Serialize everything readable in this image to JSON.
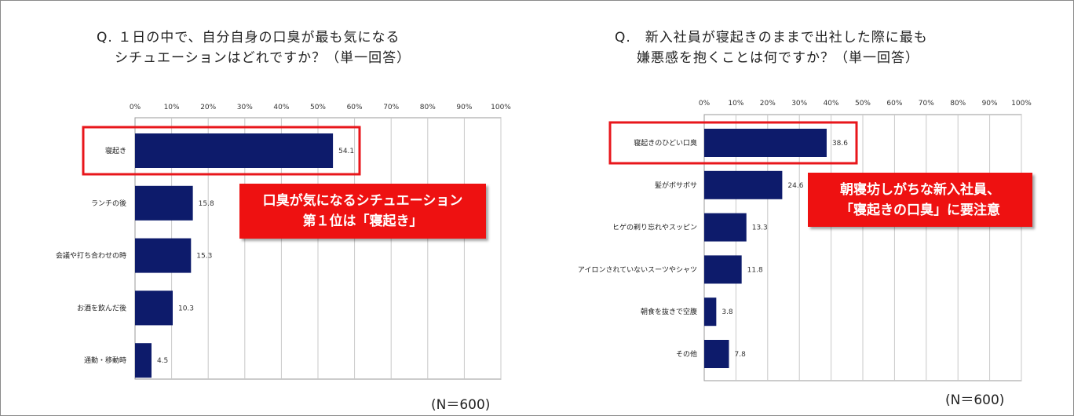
{
  "colors": {
    "bar": "#0d1b6b",
    "highlight": "#e8161b",
    "callout_bg": "#ee1111",
    "grid": "#c8c8c8"
  },
  "left": {
    "title_line1": "Q. １日の中で、自分自身の口臭が最も気になる",
    "title_line2": "シチュエーションはどれですか？（単一回答）",
    "callout_line1": "口臭が気になるシチュエーション",
    "callout_line2": "第１位は「寝起き」",
    "n_label": "(N＝600)"
  },
  "right": {
    "title_line1": "Q.　新入社員が寝起きのままで出社した際に最も",
    "title_line2": "嫌悪感を抱くことは何ですか？（単一回答）",
    "callout_line1": "朝寝坊しがちな新入社員、",
    "callout_line2": "「寝起きの口臭」に要注意",
    "n_label": "(N＝600)"
  },
  "chart_data": [
    {
      "type": "bar",
      "orientation": "horizontal",
      "title": "Q. １日の中で、自分自身の口臭が最も気になるシチュエーションはどれですか？（単一回答）",
      "categories": [
        "寝起き",
        "ランチの後",
        "会議や打ち合わせの時",
        "お酒を飲んだ後",
        "通勤・移動時"
      ],
      "values": [
        54.1,
        15.8,
        15.3,
        10.3,
        4.5
      ],
      "value_labels": [
        "54.1",
        "15.8",
        "15.3",
        "10.3",
        "4.5"
      ],
      "x_ticks": [
        "0%",
        "10%",
        "20%",
        "30%",
        "40%",
        "50%",
        "60%",
        "70%",
        "80%",
        "90%",
        "100%"
      ],
      "xlim": [
        0,
        100
      ],
      "highlighted_category": "寝起き",
      "grid": true,
      "legend": "none"
    },
    {
      "type": "bar",
      "orientation": "horizontal",
      "title": "Q. 新入社員が寝起きのままで出社した際に最も嫌悪感を抱くことは何ですか？（単一回答）",
      "categories": [
        "寝起きのひどい口臭",
        "髪がボサボサ",
        "ヒゲの剃り忘れやスッピン",
        "アイロンされていないスーツやシャツ",
        "朝食を抜きで空腹",
        "その他"
      ],
      "values": [
        38.6,
        24.6,
        13.3,
        11.8,
        3.8,
        7.8
      ],
      "value_labels": [
        "38.6",
        "24.6",
        "13.3",
        "11.8",
        "3.8",
        "7.8"
      ],
      "x_ticks": [
        "0%",
        "10%",
        "20%",
        "30%",
        "40%",
        "50%",
        "60%",
        "70%",
        "80%",
        "90%",
        "100%"
      ],
      "xlim": [
        0,
        100
      ],
      "highlighted_category": "寝起きのひどい口臭",
      "grid": true,
      "legend": "none"
    }
  ]
}
